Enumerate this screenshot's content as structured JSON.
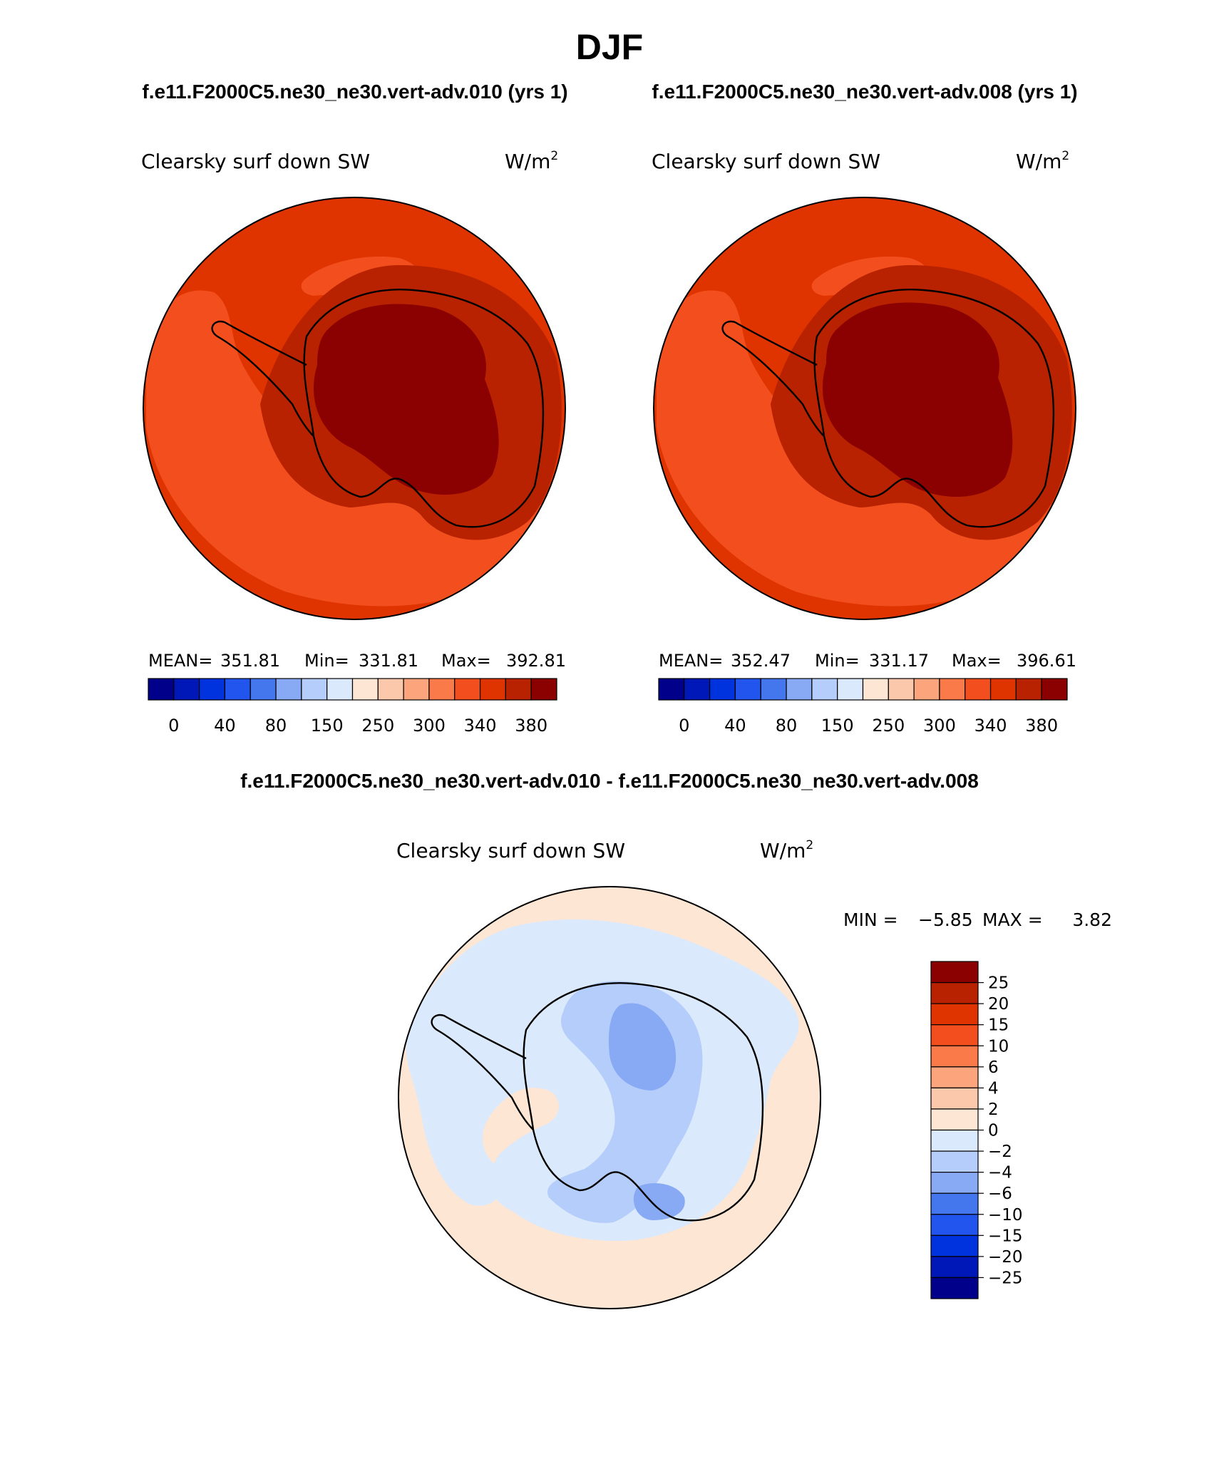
{
  "figure": {
    "title": "DJF",
    "subtitle_left": "f.e11.F2000C5.ne30_ne30.vert-adv.010 (yrs 1)",
    "subtitle_right": "f.e11.F2000C5.ne30_ne30.vert-adv.008 (yrs 1)",
    "diff_title": "f.e11.F2000C5.ne30_ne30.vert-adv.010 - f.e11.F2000C5.ne30_ne30.vert-adv.008"
  },
  "chart_data": [
    {
      "type": "heatmap",
      "projection": "south polar stereographic",
      "variable": "Clearsky surf down SW",
      "units": "W/m",
      "units_exp": "2",
      "stats": {
        "mean_label": "MEAN=",
        "mean": "351.81",
        "min_label": "Min=",
        "min": "331.81",
        "max_label": "Max=",
        "max": "392.81"
      },
      "colorbar": {
        "tick_labels": [
          "0",
          "40",
          "80",
          "150",
          "250",
          "300",
          "340",
          "380"
        ],
        "colors": [
          "#00008b",
          "#0018b8",
          "#0033dd",
          "#2255ee",
          "#4477ee",
          "#88aaf5",
          "#b5cdfa",
          "#dbe9fd",
          "#fde6d4",
          "#fcc8ac",
          "#fca47c",
          "#fa7a4a",
          "#f24e1e",
          "#df3300",
          "#b82200",
          "#8b0000"
        ]
      },
      "field_levels": {
        "ocean_outer": 340,
        "ocean_inner": 320,
        "coast": 360,
        "plateau": 380
      }
    },
    {
      "type": "heatmap",
      "projection": "south polar stereographic",
      "variable": "Clearsky surf down SW",
      "units": "W/m",
      "units_exp": "2",
      "stats": {
        "mean_label": "MEAN=",
        "mean": "352.47",
        "min_label": "Min=",
        "min": "331.17",
        "max_label": "Max=",
        "max": "396.61"
      },
      "colorbar": {
        "tick_labels": [
          "0",
          "40",
          "80",
          "150",
          "250",
          "300",
          "340",
          "380"
        ],
        "colors": [
          "#00008b",
          "#0018b8",
          "#0033dd",
          "#2255ee",
          "#4477ee",
          "#88aaf5",
          "#b5cdfa",
          "#dbe9fd",
          "#fde6d4",
          "#fcc8ac",
          "#fca47c",
          "#fa7a4a",
          "#f24e1e",
          "#df3300",
          "#b82200",
          "#8b0000"
        ]
      },
      "field_levels": {
        "ocean_outer": 340,
        "ocean_inner": 320,
        "coast": 360,
        "plateau": 380
      }
    },
    {
      "type": "heatmap",
      "projection": "south polar stereographic",
      "variable": "Clearsky surf down SW",
      "units": "W/m",
      "units_exp": "2",
      "stats": {
        "min_label": "MIN =",
        "min": "−5.85",
        "max_label": "MAX =",
        "max": "3.82"
      },
      "colorbar": {
        "tick_labels": [
          "25",
          "20",
          "15",
          "10",
          "6",
          "4",
          "2",
          "0",
          "−2",
          "−4",
          "−6",
          "−10",
          "−15",
          "−20",
          "−25"
        ],
        "colors": [
          "#8b0000",
          "#b82200",
          "#df3300",
          "#f24e1e",
          "#fa7a4a",
          "#fca47c",
          "#fcc8ac",
          "#fde6d4",
          "#dbe9fd",
          "#b5cdfa",
          "#88aaf5",
          "#4477ee",
          "#2255ee",
          "#0033dd",
          "#0018b8",
          "#00008b"
        ]
      },
      "field_levels": {
        "background": 1,
        "ring": -1,
        "plateau": -3,
        "minimum": -5.85
      }
    }
  ]
}
